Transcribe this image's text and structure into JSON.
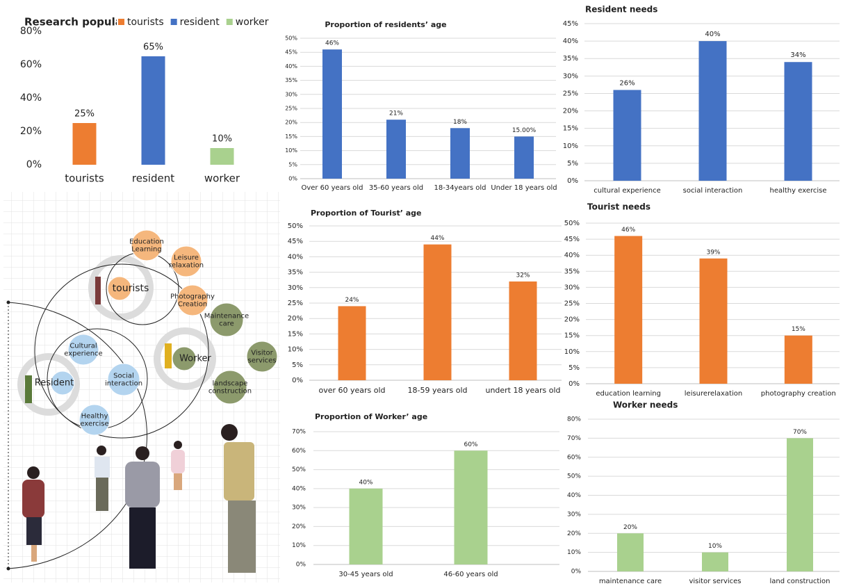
{
  "chart_data": [
    {
      "type": "bar",
      "title": "Research population",
      "categories": [
        "tourists",
        "resident",
        "worker"
      ],
      "values": [
        25,
        65,
        10
      ],
      "value_labels": [
        "25%",
        "65%",
        "10%"
      ],
      "colors": [
        "#ed7d31",
        "#4472c4",
        "#a9d18e"
      ],
      "legend": "top",
      "grid": false,
      "ylim": [
        0,
        80
      ],
      "yticks": [
        {
          "value": 0,
          "label": "0%"
        },
        {
          "value": 20,
          "label": "20%"
        },
        {
          "value": 40,
          "label": "40%"
        },
        {
          "value": 60,
          "label": "60%"
        },
        {
          "value": 80,
          "label": "80%"
        }
      ]
    },
    {
      "type": "bar",
      "title": "Proportion of residents’ age",
      "categories": [
        "Over 60 years old",
        "35-60 years old",
        "18-34years old",
        "Under 18 years old"
      ],
      "values": [
        46,
        21,
        18,
        15
      ],
      "value_labels": [
        "46%",
        "21%",
        "18%",
        "15.00%"
      ],
      "color": "#4472c4",
      "grid": true,
      "ylim": [
        0,
        50
      ],
      "yticks": [
        {
          "value": 0,
          "label": "0%"
        },
        {
          "value": 5,
          "label": "5%"
        },
        {
          "value": 10,
          "label": "10%"
        },
        {
          "value": 15,
          "label": "15%"
        },
        {
          "value": 20,
          "label": "20%"
        },
        {
          "value": 25,
          "label": "25%"
        },
        {
          "value": 30,
          "label": "30%"
        },
        {
          "value": 35,
          "label": "35%"
        },
        {
          "value": 40,
          "label": "40%"
        },
        {
          "value": 45,
          "label": "45%"
        },
        {
          "value": 50,
          "label": "50%"
        }
      ]
    },
    {
      "type": "bar",
      "title": "Resident needs",
      "categories": [
        "cultural experience",
        "social interaction",
        "healthy exercise"
      ],
      "values": [
        26,
        40,
        34
      ],
      "value_labels": [
        "26%",
        "40%",
        "34%"
      ],
      "color": "#4472c4",
      "grid": true,
      "ylim": [
        0,
        45
      ],
      "yticks": [
        {
          "value": 0,
          "label": "0%"
        },
        {
          "value": 5,
          "label": "5%"
        },
        {
          "value": 10,
          "label": "10%"
        },
        {
          "value": 15,
          "label": "15%"
        },
        {
          "value": 20,
          "label": "20%"
        },
        {
          "value": 25,
          "label": "25%"
        },
        {
          "value": 30,
          "label": "30%"
        },
        {
          "value": 35,
          "label": "35%"
        },
        {
          "value": 40,
          "label": "40%"
        },
        {
          "value": 45,
          "label": "45%"
        }
      ]
    },
    {
      "type": "bar",
      "title": "Proportion of Tourist’ age",
      "categories": [
        "over 60 years old",
        "18-59 years old",
        "undert 18 years old"
      ],
      "values": [
        24,
        44,
        32
      ],
      "value_labels": [
        "24%",
        "44%",
        "32%"
      ],
      "color": "#ed7d31",
      "grid": true,
      "ylim": [
        0,
        50
      ],
      "yticks": [
        {
          "value": 0,
          "label": "0%"
        },
        {
          "value": 5,
          "label": "5%"
        },
        {
          "value": 10,
          "label": "10%"
        },
        {
          "value": 15,
          "label": "15%"
        },
        {
          "value": 20,
          "label": "20%"
        },
        {
          "value": 25,
          "label": "25%"
        },
        {
          "value": 30,
          "label": "30%"
        },
        {
          "value": 35,
          "label": "35%"
        },
        {
          "value": 40,
          "label": "40%"
        },
        {
          "value": 45,
          "label": "45%"
        },
        {
          "value": 50,
          "label": "50%"
        }
      ]
    },
    {
      "type": "bar",
      "title": "Tourist needs",
      "categories": [
        "education learning",
        "leisurerelaxation",
        "photography creation"
      ],
      "values": [
        46,
        39,
        15
      ],
      "value_labels": [
        "46%",
        "39%",
        "15%"
      ],
      "color": "#ed7d31",
      "grid": true,
      "ylim": [
        0,
        50
      ],
      "yticks": [
        {
          "value": 0,
          "label": "0%"
        },
        {
          "value": 5,
          "label": "5%"
        },
        {
          "value": 10,
          "label": "10%"
        },
        {
          "value": 15,
          "label": "15%"
        },
        {
          "value": 20,
          "label": "20%"
        },
        {
          "value": 25,
          "label": "25%"
        },
        {
          "value": 30,
          "label": "30%"
        },
        {
          "value": 35,
          "label": "35%"
        },
        {
          "value": 40,
          "label": "40%"
        },
        {
          "value": 45,
          "label": "45%"
        },
        {
          "value": 50,
          "label": "50%"
        }
      ]
    },
    {
      "type": "bar",
      "title": "Proportion of Worker’ age",
      "categories": [
        "30-45 years old",
        "46-60 years old"
      ],
      "values": [
        40,
        60
      ],
      "value_labels": [
        "40%",
        "60%"
      ],
      "color": "#a9d18e",
      "grid": true,
      "ylim": [
        0,
        70
      ],
      "yticks": [
        {
          "value": 0,
          "label": "0%"
        },
        {
          "value": 10,
          "label": "10%"
        },
        {
          "value": 20,
          "label": "20%"
        },
        {
          "value": 30,
          "label": "30%"
        },
        {
          "value": 40,
          "label": "40%"
        },
        {
          "value": 50,
          "label": "50%"
        },
        {
          "value": 60,
          "label": "60%"
        },
        {
          "value": 70,
          "label": "70%"
        }
      ]
    },
    {
      "type": "bar",
      "title": "Worker needs",
      "categories": [
        "maintenance care",
        "visitor services",
        "land construction"
      ],
      "values": [
        20,
        10,
        70
      ],
      "value_labels": [
        "20%",
        "10%",
        "70%"
      ],
      "color": "#a9d18e",
      "grid": true,
      "ylim": [
        0,
        80
      ],
      "yticks": [
        {
          "value": 0,
          "label": "0%"
        },
        {
          "value": 10,
          "label": "10%"
        },
        {
          "value": 20,
          "label": "20%"
        },
        {
          "value": 30,
          "label": "30%"
        },
        {
          "value": 40,
          "label": "40%"
        },
        {
          "value": 50,
          "label": "50%"
        },
        {
          "value": 60,
          "label": "60%"
        },
        {
          "value": 70,
          "label": "70%"
        },
        {
          "value": 80,
          "label": "80%"
        }
      ]
    }
  ],
  "diagram": {
    "nodes": [
      {
        "label": [
          "tourists"
        ]
      },
      {
        "label": [
          "Education",
          "Learning"
        ]
      },
      {
        "label": [
          "Leisure",
          "relaxation"
        ]
      },
      {
        "label": [
          "Photography",
          "Creation"
        ]
      },
      {
        "label": [
          "Worker"
        ]
      },
      {
        "label": [
          "Maintenance",
          "care"
        ]
      },
      {
        "label": [
          "Visitor",
          "services"
        ]
      },
      {
        "label": [
          "landscape",
          "construction"
        ]
      },
      {
        "label": [
          "Resident"
        ]
      },
      {
        "label": [
          "Cultural",
          "experience"
        ]
      },
      {
        "label": [
          "Social",
          "interaction"
        ]
      },
      {
        "label": [
          "Healthy",
          "exercise"
        ]
      }
    ]
  }
}
